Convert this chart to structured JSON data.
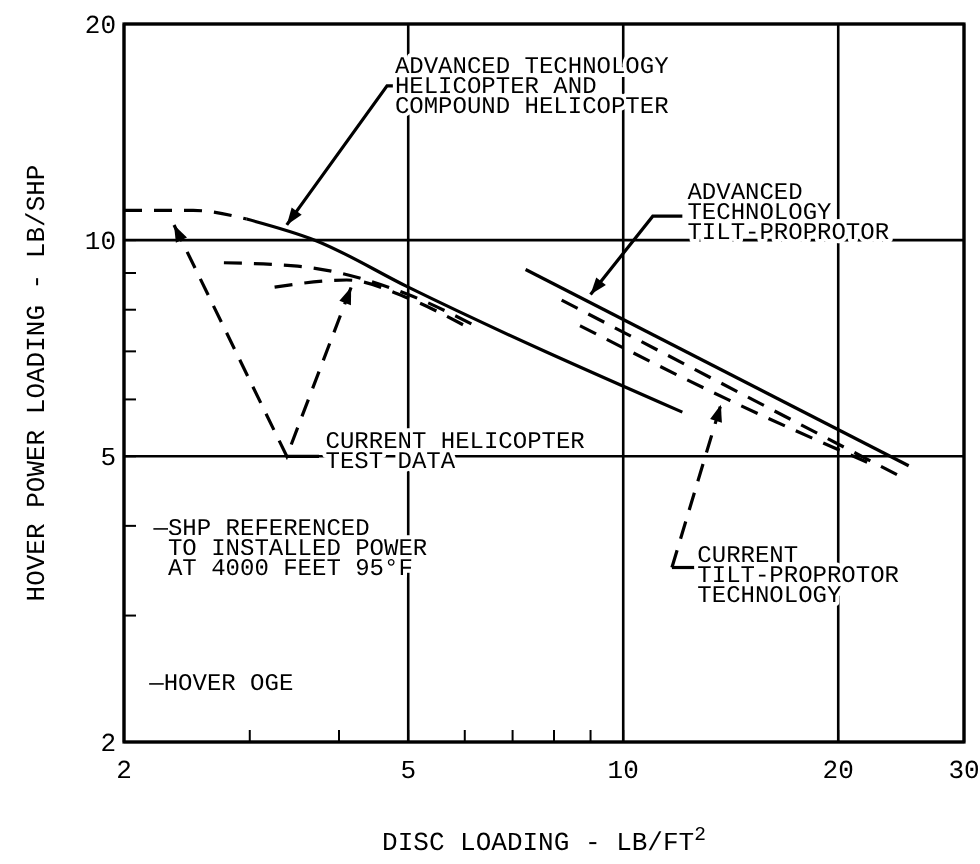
{
  "chart_data": {
    "type": "line",
    "xlabel": "DISC LOADING - LB/FT$^{2}$",
    "ylabel": "HOVER POWER LOADING - LB/SHP",
    "log": "xy",
    "grid": true,
    "xlim": [
      2,
      30
    ],
    "ylim": [
      2,
      20
    ],
    "xticks": [
      2,
      {
        "value": 3,
        "label": null
      },
      {
        "value": 4,
        "label": null
      },
      5,
      {
        "value": 6,
        "label": null
      },
      {
        "value": 7,
        "label": null
      },
      {
        "value": 8,
        "label": null
      },
      {
        "value": 9,
        "label": null
      },
      10,
      20,
      30
    ],
    "yticks": [
      2,
      {
        "value": 3,
        "label": null
      },
      {
        "value": 4,
        "label": null
      },
      5,
      {
        "value": 6,
        "label": null
      },
      {
        "value": 7,
        "label": null
      },
      {
        "value": 8,
        "label": null
      },
      {
        "value": 9,
        "label": null
      },
      10,
      20
    ],
    "series": [
      {
        "color": "#000000",
        "line_style": "dashed",
        "x": [
          2,
          2.5,
          2.97
        ],
        "values": [
          11.0,
          11.0,
          10.7
        ]
      },
      {
        "color": "#000000",
        "line_style": "solid",
        "x": [
          2.97,
          3.7,
          5,
          12.1
        ],
        "values": [
          10.7,
          10.0,
          8.6,
          5.76
        ]
      },
      {
        "color": "#000000",
        "line_style": "dashed",
        "x": [
          2.76,
          3.5,
          5,
          6.2
        ],
        "values": [
          9.3,
          9.2,
          8.4,
          7.6
        ]
      },
      {
        "color": "#000000",
        "line_style": "dashed",
        "x": [
          3.25,
          4.1,
          5,
          6.0
        ],
        "values": [
          8.6,
          8.8,
          8.3,
          7.6
        ]
      },
      {
        "color": "#000000",
        "line_style": "solid",
        "x": [
          7.3,
          25.1
        ],
        "values": [
          9.1,
          4.85
        ]
      },
      {
        "color": "#000000",
        "line_style": "dashed",
        "x": [
          8.2,
          24.3
        ],
        "values": [
          8.25,
          4.7
        ]
      },
      {
        "color": "#000000",
        "line_style": "dashed",
        "x": [
          8.7,
          14,
          22
        ],
        "values": [
          7.6,
          6.0,
          4.9
        ]
      }
    ],
    "annotations": [
      {
        "text": "ADVANCED TECHNOLOGY\nHELICOPTER AND\nCOMPOUND HELICOPTER",
        "x": 3.38,
        "y": 10.5
      },
      {
        "text": "ADVANCED\nTECHNOLOGY\nTILT-PROPROTOR",
        "x": 9.0,
        "y": 8.4
      },
      "CURRENT HELICOPTER\nTEST DATA",
      {
        "text": "CURRENT\nTILT-PROPROTOR\nTECHNOLOGY",
        "x": 13.7,
        "y": 5.9
      },
      "—SHP REFERENCED\n TO INSTALLED POWER\n AT 4000 FEET 95°F",
      "—HOVER OGE"
    ]
  }
}
